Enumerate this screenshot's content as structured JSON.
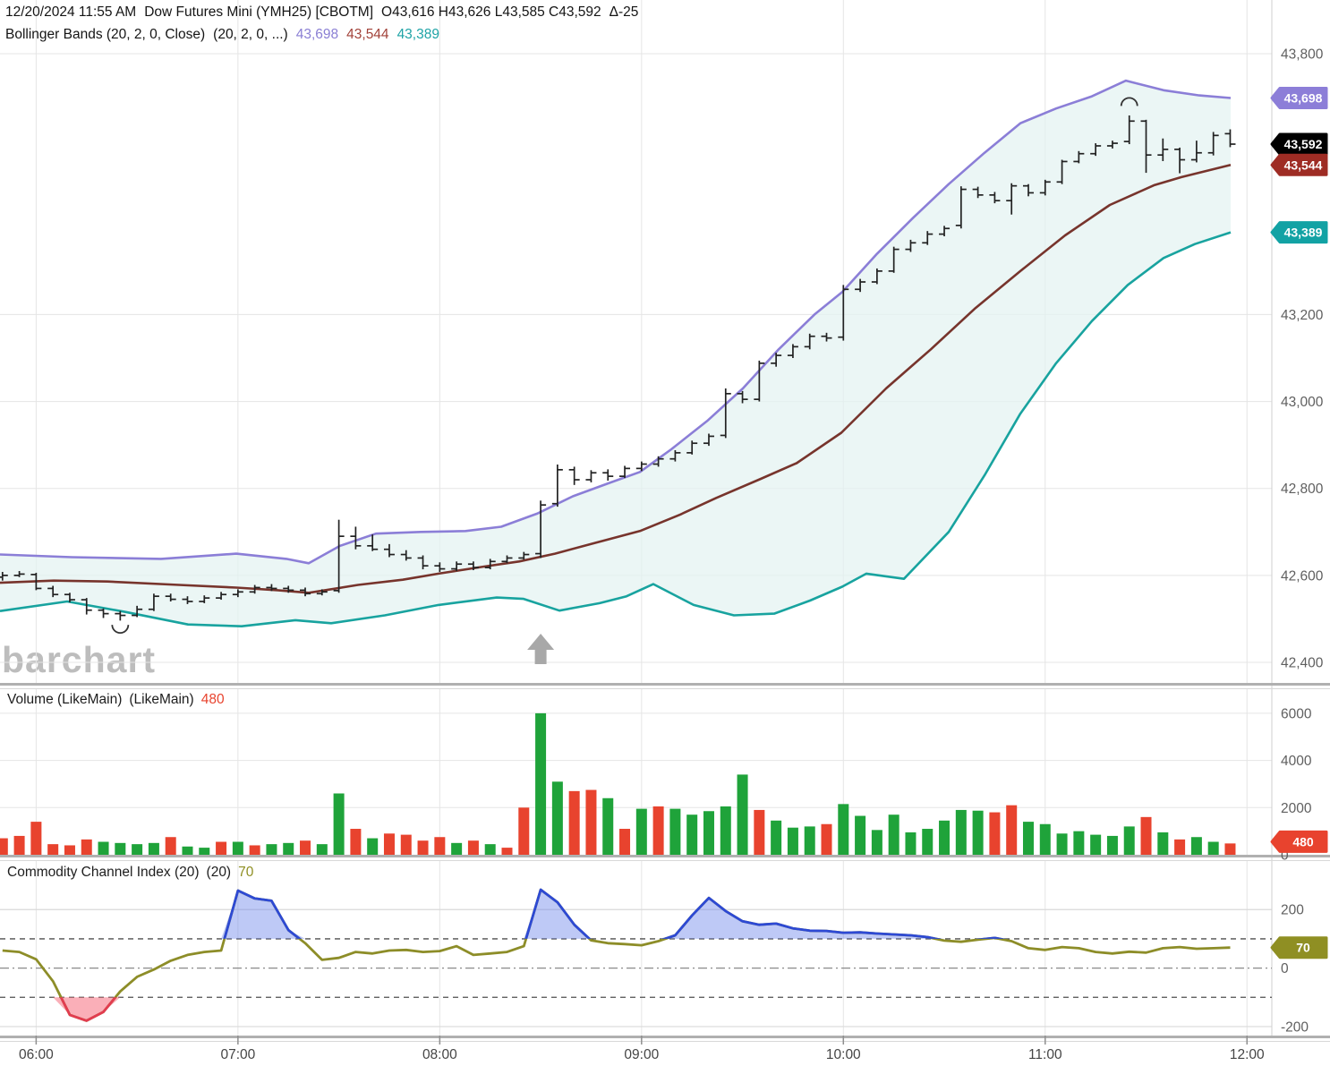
{
  "header": {
    "datetime": "12/20/2024 11:55 AM",
    "symbol": "Dow Futures Mini (YMH25) [CBOTM]",
    "ohlc": "O43,616 H43,626 L43,585 C43,592",
    "change": "Δ-25"
  },
  "bollinger_legend": {
    "label": "Bollinger Bands (20, 2, 0, Close)",
    "params": "(20, 2, 0, ...)",
    "upper_value": "43,698",
    "middle_value": "43,544",
    "lower_value": "43,389"
  },
  "volume_panel": {
    "label": "Volume (LikeMain)",
    "params": "(LikeMain)",
    "last_value": "480"
  },
  "cci_panel": {
    "label": "Commodity Channel Index (20)",
    "params": "(20)",
    "last_value": "70"
  },
  "watermark": "barchart",
  "colors": {
    "bb_upper": "#8b7ed7",
    "bb_middle": "#77342c",
    "bb_lower": "#18a39f",
    "bb_fill": "#e3f2f1",
    "price_bar": "#222222",
    "vol_up": "#1fa33a",
    "vol_down": "#e8432e",
    "cci_line": "#8d8d28",
    "cci_over_line": "#2d49d4",
    "cci_over_fill": "rgba(110,135,235,0.45)",
    "cci_under_line": "#e23c50",
    "cci_under_fill": "rgba(246,110,125,0.55)",
    "grid": "#e5e5e5",
    "grid_strong": "#d9d9d9",
    "axis_text": "#5f5f5f",
    "time_text": "#454545",
    "divider": "#b0b0b0",
    "divider_light": "#d8d8d8",
    "arrow": "#a8a8a8",
    "badge_purple": "#8c7ed8",
    "badge_black": "#000000",
    "badge_maroon": "#9e2c24",
    "badge_teal": "#12a2a4",
    "badge_red": "#e8432e",
    "badge_olive": "#8f8f23"
  },
  "chart_data": {
    "type": "ohlc-multi-panel",
    "interval_minutes": 5,
    "price_axis": {
      "ticks": [
        43800,
        43200,
        43000,
        42800,
        42600,
        42400
      ],
      "top_value": 43800,
      "bottom_value": 42400,
      "badges": [
        {
          "label": "43,698",
          "value": 43698,
          "color_key": "badge_purple"
        },
        {
          "label": "43,592",
          "value": 43592,
          "color_key": "badge_black"
        },
        {
          "label": "43,544",
          "value": 43544,
          "color_key": "badge_maroon"
        },
        {
          "label": "43,389",
          "value": 43389,
          "color_key": "badge_teal"
        }
      ]
    },
    "volume_axis": {
      "ticks": [
        6000,
        4000,
        2000,
        0
      ],
      "max": 7000,
      "badge": {
        "label": "480",
        "value": 480,
        "color_key": "badge_red"
      }
    },
    "cci_axis": {
      "ticks": [
        200,
        0,
        -200
      ],
      "dashed_levels": [
        100,
        -100
      ],
      "dashdot_level": 0,
      "solid_levels": [
        200,
        -200
      ],
      "badge": {
        "label": "70",
        "value": 70,
        "color_key": "badge_olive"
      }
    },
    "time_axis": [
      "06:00",
      "07:00",
      "08:00",
      "09:00",
      "10:00",
      "11:00",
      "12:00"
    ],
    "price_bars": [
      [
        42596,
        42608,
        42588,
        42600
      ],
      [
        42600,
        42610,
        42596,
        42603
      ],
      [
        42602,
        42606,
        42566,
        42570
      ],
      [
        42570,
        42576,
        42550,
        42556
      ],
      [
        42556,
        42560,
        42538,
        42544
      ],
      [
        42544,
        42548,
        42510,
        42520
      ],
      [
        42520,
        42524,
        42502,
        42512
      ],
      [
        42512,
        42518,
        42496,
        42508
      ],
      [
        42508,
        42530,
        42504,
        42522
      ],
      [
        42522,
        42558,
        42518,
        42552
      ],
      [
        42552,
        42558,
        42540,
        42545
      ],
      [
        42545,
        42552,
        42534,
        42540
      ],
      [
        42540,
        42554,
        42536,
        42548
      ],
      [
        42548,
        42562,
        42544,
        42556
      ],
      [
        42556,
        42568,
        42550,
        42562
      ],
      [
        42562,
        42578,
        42558,
        42572
      ],
      [
        42572,
        42580,
        42564,
        42570
      ],
      [
        42570,
        42576,
        42560,
        42566
      ],
      [
        42566,
        42572,
        42552,
        42558
      ],
      [
        42558,
        42568,
        42554,
        42562
      ],
      [
        42565,
        42728,
        42560,
        42690
      ],
      [
        42690,
        42712,
        42660,
        42668
      ],
      [
        42668,
        42694,
        42656,
        42660
      ],
      [
        42660,
        42672,
        42642,
        42648
      ],
      [
        42648,
        42658,
        42634,
        42640
      ],
      [
        42640,
        42646,
        42614,
        42622
      ],
      [
        42622,
        42630,
        42608,
        42615
      ],
      [
        42615,
        42632,
        42610,
        42626
      ],
      [
        42626,
        42632,
        42612,
        42618
      ],
      [
        42618,
        42638,
        42614,
        42632
      ],
      [
        42632,
        42646,
        42628,
        42640
      ],
      [
        42640,
        42654,
        42636,
        42648
      ],
      [
        42650,
        42772,
        42640,
        42762
      ],
      [
        42765,
        42855,
        42758,
        42843
      ],
      [
        42843,
        42850,
        42808,
        42820
      ],
      [
        42820,
        42842,
        42814,
        42836
      ],
      [
        42836,
        42844,
        42818,
        42828
      ],
      [
        42828,
        42852,
        42824,
        42846
      ],
      [
        42846,
        42862,
        42840,
        42856
      ],
      [
        42856,
        42874,
        42850,
        42868
      ],
      [
        42868,
        42888,
        42862,
        42882
      ],
      [
        42882,
        42910,
        42878,
        42904
      ],
      [
        42904,
        42926,
        42898,
        42920
      ],
      [
        42922,
        43030,
        42916,
        43018
      ],
      [
        43018,
        43024,
        42996,
        43005
      ],
      [
        43005,
        43094,
        43000,
        43088
      ],
      [
        43088,
        43112,
        43080,
        43106
      ],
      [
        43106,
        43132,
        43100,
        43126
      ],
      [
        43126,
        43156,
        43120,
        43150
      ],
      [
        43150,
        43158,
        43138,
        43146
      ],
      [
        43148,
        43268,
        43140,
        43258
      ],
      [
        43258,
        43282,
        43252,
        43275
      ],
      [
        43275,
        43306,
        43270,
        43300
      ],
      [
        43300,
        43356,
        43296,
        43350
      ],
      [
        43350,
        43372,
        43344,
        43365
      ],
      [
        43365,
        43392,
        43360,
        43385
      ],
      [
        43385,
        43404,
        43380,
        43398
      ],
      [
        43405,
        43495,
        43398,
        43488
      ],
      [
        43488,
        43494,
        43468,
        43475
      ],
      [
        43475,
        43482,
        43456,
        43462
      ],
      [
        43462,
        43502,
        43430,
        43496
      ],
      [
        43496,
        43500,
        43472,
        43480
      ],
      [
        43480,
        43510,
        43474,
        43505
      ],
      [
        43505,
        43556,
        43500,
        43552
      ],
      [
        43552,
        43576,
        43548,
        43570
      ],
      [
        43570,
        43594,
        43565,
        43588
      ],
      [
        43588,
        43600,
        43582,
        43594
      ],
      [
        43598,
        43658,
        43592,
        43645
      ],
      [
        43645,
        43648,
        43526,
        43567
      ],
      [
        43567,
        43605,
        43553,
        43580
      ],
      [
        43580,
        43584,
        43525,
        43556
      ],
      [
        43556,
        43600,
        43550,
        43572
      ],
      [
        43572,
        43620,
        43566,
        43612
      ],
      [
        43616,
        43626,
        43585,
        43592
      ]
    ],
    "bollinger": {
      "upper_anchors": [
        [
          0,
          42648
        ],
        [
          80,
          42642
        ],
        [
          180,
          42638
        ],
        [
          264,
          42650
        ],
        [
          320,
          42638
        ],
        [
          345,
          42628
        ],
        [
          380,
          42668
        ],
        [
          420,
          42696
        ],
        [
          470,
          42700
        ],
        [
          520,
          42702
        ],
        [
          560,
          42712
        ],
        [
          600,
          42742
        ],
        [
          640,
          42782
        ],
        [
          680,
          42812
        ],
        [
          715,
          42838
        ],
        [
          750,
          42890
        ],
        [
          790,
          42955
        ],
        [
          830,
          43030
        ],
        [
          870,
          43120
        ],
        [
          910,
          43200
        ],
        [
          941,
          43252
        ],
        [
          980,
          43340
        ],
        [
          1020,
          43422
        ],
        [
          1060,
          43500
        ],
        [
          1100,
          43572
        ],
        [
          1140,
          43640
        ],
        [
          1180,
          43674
        ],
        [
          1220,
          43702
        ],
        [
          1258,
          43738
        ],
        [
          1300,
          43716
        ],
        [
          1340,
          43704
        ],
        [
          1375,
          43698
        ]
      ],
      "middle_anchors": [
        [
          0,
          42583
        ],
        [
          60,
          42588
        ],
        [
          120,
          42586
        ],
        [
          200,
          42578
        ],
        [
          264,
          42572
        ],
        [
          310,
          42566
        ],
        [
          345,
          42560
        ],
        [
          400,
          42578
        ],
        [
          450,
          42590
        ],
        [
          490,
          42604
        ],
        [
          540,
          42620
        ],
        [
          580,
          42632
        ],
        [
          620,
          42650
        ],
        [
          660,
          42672
        ],
        [
          715,
          42702
        ],
        [
          760,
          42740
        ],
        [
          800,
          42778
        ],
        [
          850,
          42822
        ],
        [
          890,
          42858
        ],
        [
          940,
          42928
        ],
        [
          990,
          43030
        ],
        [
          1040,
          43120
        ],
        [
          1090,
          43215
        ],
        [
          1140,
          43300
        ],
        [
          1190,
          43382
        ],
        [
          1240,
          43452
        ],
        [
          1290,
          43498
        ],
        [
          1320,
          43516
        ],
        [
          1375,
          43544
        ]
      ],
      "lower_anchors": [
        [
          0,
          42518
        ],
        [
          75,
          42540
        ],
        [
          140,
          42516
        ],
        [
          210,
          42487
        ],
        [
          270,
          42483
        ],
        [
          330,
          42497
        ],
        [
          370,
          42490
        ],
        [
          430,
          42508
        ],
        [
          490,
          42532
        ],
        [
          555,
          42549
        ],
        [
          585,
          42546
        ],
        [
          625,
          42519
        ],
        [
          670,
          42536
        ],
        [
          700,
          42552
        ],
        [
          730,
          42580
        ],
        [
          775,
          42532
        ],
        [
          820,
          42508
        ],
        [
          865,
          42512
        ],
        [
          905,
          42542
        ],
        [
          941,
          42574
        ],
        [
          968,
          42604
        ],
        [
          1010,
          42592
        ],
        [
          1060,
          42700
        ],
        [
          1100,
          42830
        ],
        [
          1140,
          42972
        ],
        [
          1180,
          43088
        ],
        [
          1220,
          43185
        ],
        [
          1260,
          43268
        ],
        [
          1300,
          43330
        ],
        [
          1335,
          43362
        ],
        [
          1375,
          43389
        ]
      ]
    },
    "volume": {
      "values": [
        700,
        800,
        1400,
        450,
        400,
        650,
        550,
        500,
        450,
        500,
        750,
        350,
        300,
        550,
        550,
        400,
        450,
        500,
        600,
        450,
        2600,
        1100,
        700,
        900,
        850,
        600,
        750,
        500,
        600,
        450,
        300,
        2000,
        6000,
        3100,
        2700,
        2750,
        2400,
        1100,
        1950,
        2050,
        1950,
        1700,
        1850,
        2050,
        3400,
        1900,
        1450,
        1150,
        1200,
        1300,
        2150,
        1650,
        1050,
        1700,
        950,
        1100,
        1450,
        1900,
        1870,
        1800,
        2100,
        1400,
        1300,
        900,
        1000,
        850,
        800,
        1200,
        1600,
        950,
        650,
        750,
        550,
        480
      ],
      "directions": [
        "d",
        "d",
        "d",
        "d",
        "d",
        "d",
        "u",
        "u",
        "u",
        "u",
        "d",
        "u",
        "u",
        "d",
        "u",
        "d",
        "u",
        "u",
        "d",
        "u",
        "u",
        "d",
        "u",
        "d",
        "d",
        "d",
        "d",
        "u",
        "d",
        "u",
        "d",
        "d",
        "u",
        "u",
        "d",
        "d",
        "u",
        "d",
        "u",
        "d",
        "u",
        "u",
        "u",
        "u",
        "u",
        "d",
        "u",
        "u",
        "u",
        "d",
        "u",
        "u",
        "u",
        "u",
        "u",
        "u",
        "u",
        "u",
        "u",
        "d",
        "d",
        "u",
        "u",
        "u",
        "u",
        "u",
        "u",
        "u",
        "d",
        "u",
        "d",
        "u",
        "u",
        "d"
      ]
    },
    "cci": {
      "values": [
        60,
        55,
        30,
        -45,
        -160,
        -180,
        -150,
        -80,
        -30,
        -5,
        25,
        45,
        55,
        60,
        265,
        238,
        230,
        130,
        85,
        28,
        35,
        55,
        50,
        60,
        62,
        55,
        58,
        75,
        45,
        50,
        55,
        75,
        268,
        225,
        148,
        95,
        85,
        82,
        78,
        92,
        112,
        180,
        240,
        195,
        160,
        148,
        152,
        136,
        128,
        127,
        121,
        122,
        118,
        115,
        112,
        106,
        94,
        90,
        97,
        103,
        92,
        68,
        62,
        72,
        68,
        55,
        50,
        56,
        53,
        68,
        72,
        66,
        68,
        70
      ]
    },
    "markers": [
      {
        "bar": 7,
        "position": "below",
        "price": 42478
      },
      {
        "bar": 67,
        "position": "above",
        "price": 43688
      }
    ],
    "arrow_annotation": {
      "bar": 32,
      "direction": "up"
    }
  }
}
